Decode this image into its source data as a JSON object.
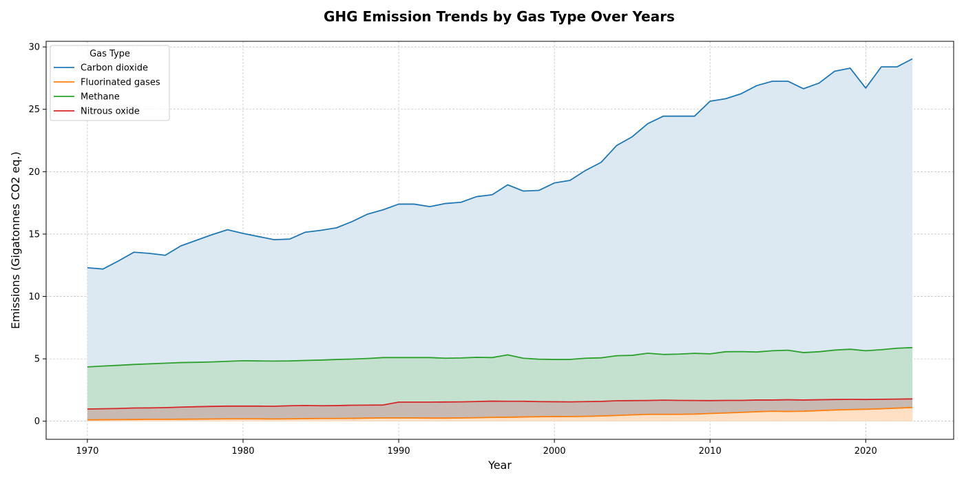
{
  "chart_data": {
    "type": "area",
    "title": "GHG Emission Trends by Gas Type Over Years",
    "xlabel": "Year",
    "ylabel": "Emissions (Gigatonnes CO2 eq.)",
    "xlim": [
      1967.35,
      2025.65
    ],
    "ylim": [
      -1.45,
      30.45
    ],
    "x_ticks": [
      1970,
      1980,
      1990,
      2000,
      2010,
      2020
    ],
    "y_ticks": [
      0,
      5,
      10,
      15,
      20,
      25,
      30
    ],
    "grid": true,
    "legend": {
      "title": "Gas Type",
      "placement": "top-left"
    },
    "x": [
      1970,
      1971,
      1972,
      1973,
      1974,
      1975,
      1976,
      1977,
      1978,
      1979,
      1980,
      1981,
      1982,
      1983,
      1984,
      1985,
      1986,
      1987,
      1988,
      1989,
      1990,
      1991,
      1992,
      1993,
      1994,
      1995,
      1996,
      1997,
      1998,
      1999,
      2000,
      2001,
      2002,
      2003,
      2004,
      2005,
      2006,
      2007,
      2008,
      2009,
      2010,
      2011,
      2012,
      2013,
      2014,
      2015,
      2016,
      2017,
      2018,
      2019,
      2020,
      2021,
      2022,
      2023
    ],
    "series": [
      {
        "name": "Carbon dioxide",
        "color": "#1f77b4",
        "fill": "#dce8f2",
        "values": [
          12.3,
          12.2,
          12.85,
          13.55,
          13.45,
          13.3,
          14.05,
          14.5,
          14.95,
          15.35,
          15.05,
          14.8,
          14.55,
          14.6,
          15.15,
          15.3,
          15.5,
          16.0,
          16.6,
          16.95,
          17.4,
          17.4,
          17.2,
          17.45,
          17.55,
          18.0,
          18.15,
          18.95,
          18.45,
          18.5,
          19.1,
          19.3,
          20.1,
          20.75,
          22.1,
          22.8,
          23.85,
          24.45,
          24.45,
          24.45,
          25.65,
          25.85,
          26.25,
          26.9,
          27.25,
          27.25,
          26.65,
          27.1,
          28.05,
          28.3,
          26.7,
          28.4,
          28.4,
          29.05
        ]
      },
      {
        "name": "Fluorinated gases",
        "color": "#ff7f0e",
        "fill": "#ffe0c4",
        "values": [
          0.11,
          0.12,
          0.13,
          0.14,
          0.15,
          0.15,
          0.16,
          0.17,
          0.18,
          0.19,
          0.19,
          0.19,
          0.18,
          0.19,
          0.21,
          0.22,
          0.22,
          0.23,
          0.25,
          0.26,
          0.26,
          0.26,
          0.25,
          0.25,
          0.26,
          0.28,
          0.31,
          0.32,
          0.34,
          0.36,
          0.38,
          0.37,
          0.39,
          0.42,
          0.46,
          0.51,
          0.55,
          0.55,
          0.55,
          0.57,
          0.62,
          0.66,
          0.71,
          0.76,
          0.8,
          0.78,
          0.8,
          0.85,
          0.9,
          0.93,
          0.96,
          1.0,
          1.05,
          1.1
        ]
      },
      {
        "name": "Methane",
        "color": "#2ca02c",
        "fill": "#c4e1d0",
        "values": [
          4.35,
          4.42,
          4.48,
          4.55,
          4.6,
          4.65,
          4.7,
          4.72,
          4.75,
          4.8,
          4.85,
          4.83,
          4.82,
          4.83,
          4.87,
          4.9,
          4.95,
          4.98,
          5.03,
          5.1,
          5.1,
          5.1,
          5.1,
          5.05,
          5.07,
          5.12,
          5.1,
          5.32,
          5.05,
          4.97,
          4.95,
          4.95,
          5.05,
          5.08,
          5.25,
          5.28,
          5.45,
          5.35,
          5.38,
          5.44,
          5.4,
          5.57,
          5.58,
          5.55,
          5.65,
          5.69,
          5.5,
          5.57,
          5.7,
          5.77,
          5.65,
          5.73,
          5.85,
          5.9
        ]
      },
      {
        "name": "Nitrous oxide",
        "color": "#d62728",
        "fill": "#c8bab3",
        "values": [
          0.98,
          1.0,
          1.02,
          1.06,
          1.07,
          1.09,
          1.13,
          1.16,
          1.19,
          1.21,
          1.21,
          1.21,
          1.2,
          1.24,
          1.26,
          1.24,
          1.25,
          1.28,
          1.29,
          1.3,
          1.53,
          1.53,
          1.53,
          1.54,
          1.55,
          1.58,
          1.61,
          1.6,
          1.6,
          1.57,
          1.56,
          1.55,
          1.57,
          1.59,
          1.64,
          1.65,
          1.66,
          1.69,
          1.67,
          1.66,
          1.65,
          1.67,
          1.67,
          1.7,
          1.7,
          1.72,
          1.7,
          1.72,
          1.74,
          1.75,
          1.74,
          1.76,
          1.77,
          1.79
        ]
      }
    ]
  }
}
